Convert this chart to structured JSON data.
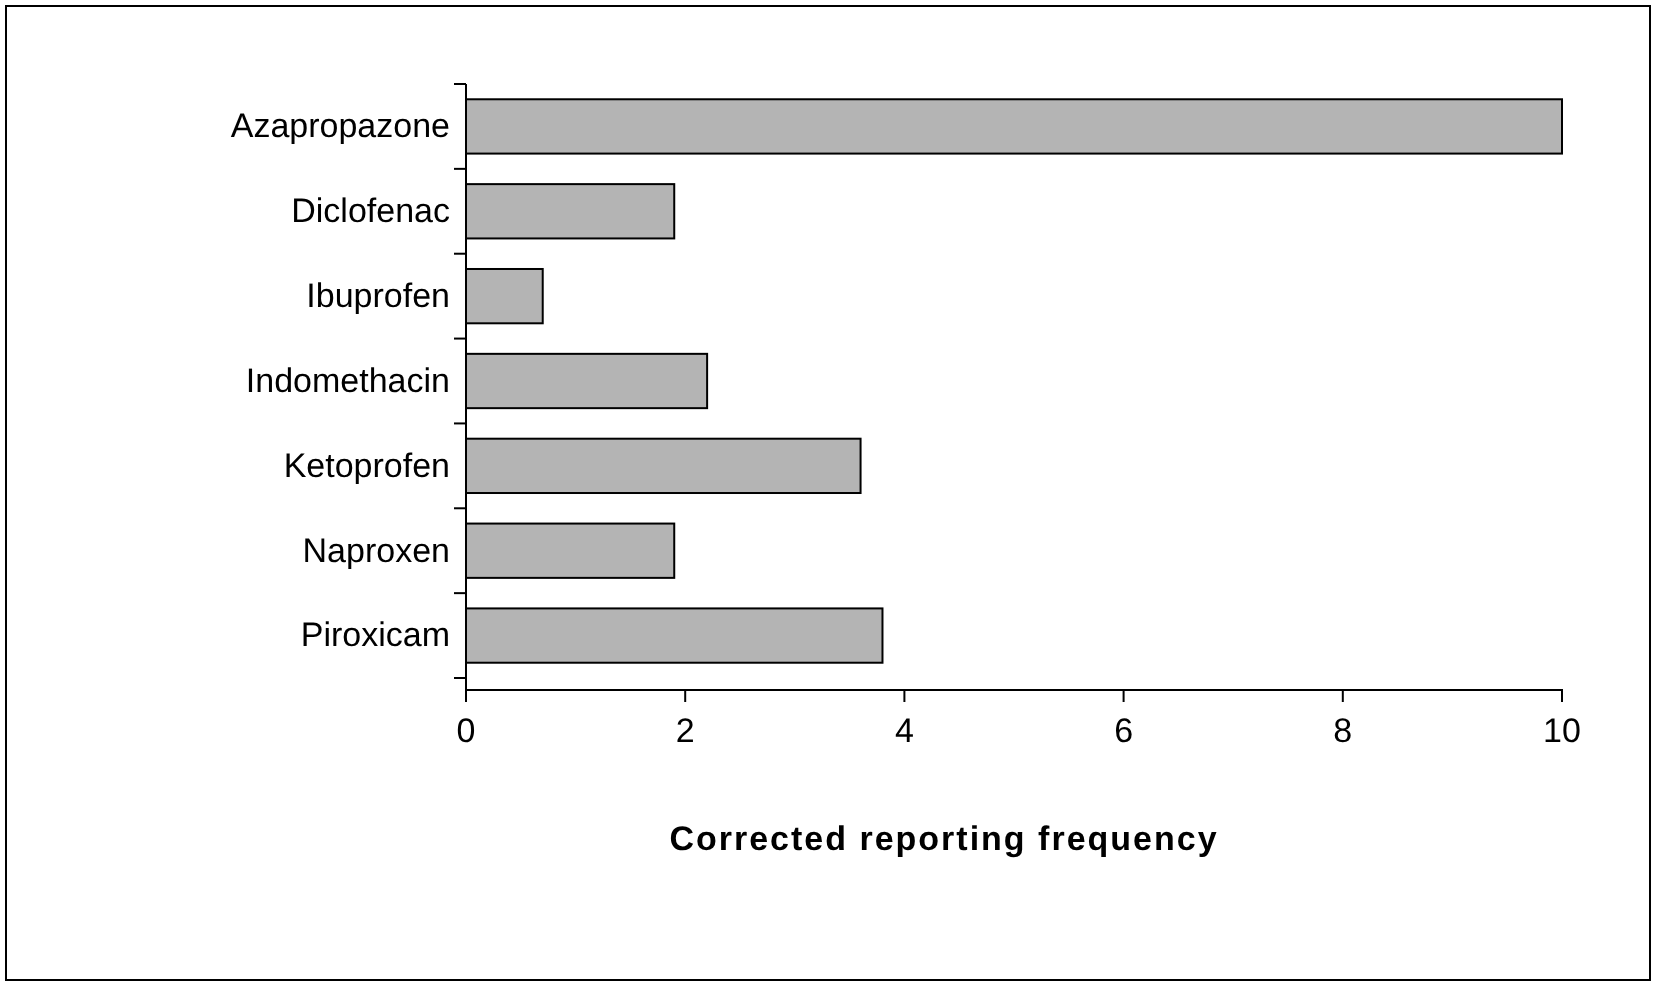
{
  "chart_data": {
    "type": "bar",
    "orientation": "horizontal",
    "xlabel": "Corrected reporting frequency",
    "categories": [
      "Azapropazone",
      "Diclofenac",
      "Ibuprofen",
      "Indomethacin",
      "Ketoprofen",
      "Naproxen",
      "Piroxicam"
    ],
    "values": [
      10,
      1.9,
      0.7,
      2.2,
      3.6,
      1.9,
      3.8
    ],
    "color": "#b4b4b4",
    "xlim": [
      0,
      10
    ],
    "xticks": [
      0,
      2,
      4,
      6,
      8,
      10
    ],
    "grid": false
  }
}
